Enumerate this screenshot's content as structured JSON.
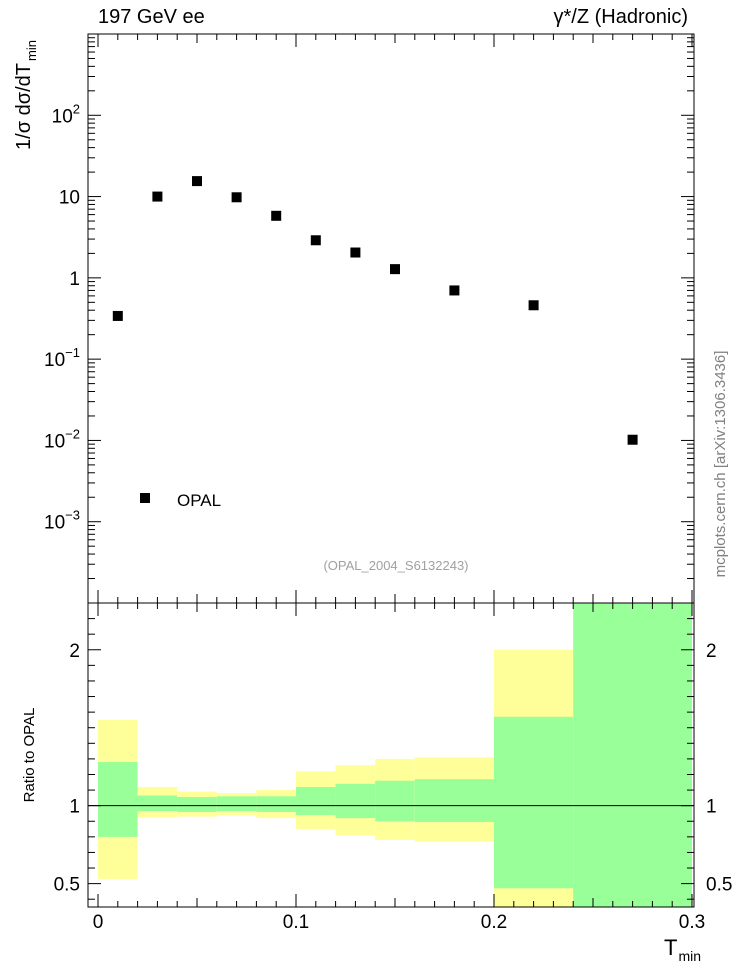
{
  "header": {
    "left_label": "197 GeV ee",
    "right_label": "γ*/Z (Hadronic)"
  },
  "watermark": "mcplots.cern.ch [arXiv:1306.3436]",
  "analysis_id": "(OPAL_2004_S6132243)",
  "colors": {
    "band_inner": "#99ff99",
    "band_outer": "#ffff99",
    "marker": "#000000",
    "watermark": "#808080"
  },
  "chart_data": [
    {
      "type": "scatter",
      "panel": "main",
      "ylabel": "1/σ dσ/dT min",
      "yscale": "log",
      "ylim": [
        0.0001,
        1000
      ],
      "xlim": [
        0,
        0.3
      ],
      "y_tick_labels": [
        "10^-3",
        "10^-2",
        "10^-1",
        "1",
        "10",
        "10^2"
      ],
      "legend_placement": "bottom-left",
      "series": [
        {
          "name": "OPAL",
          "x": [
            0.01,
            0.03,
            0.05,
            0.07,
            0.09,
            0.11,
            0.13,
            0.15,
            0.18,
            0.22,
            0.27
          ],
          "y": [
            0.34,
            10.0,
            15.5,
            9.8,
            5.8,
            2.9,
            2.05,
            1.28,
            0.7,
            0.46,
            0.0102
          ]
        }
      ]
    },
    {
      "type": "area",
      "panel": "ratio",
      "xlabel": "T min",
      "ylabel": "Ratio to OPAL",
      "xlim": [
        0,
        0.3
      ],
      "ylim": [
        0.35,
        2.3
      ],
      "x_tick_labels": [
        "0",
        "0.1",
        "0.2",
        "0.3"
      ],
      "y_tick_labels": [
        "0.5",
        "1",
        "2"
      ],
      "bins": [
        0,
        0.02,
        0.04,
        0.06,
        0.08,
        0.1,
        0.12,
        0.14,
        0.16,
        0.2,
        0.24,
        0.3
      ],
      "inner_lo": [
        0.8,
        0.965,
        0.96,
        0.965,
        0.96,
        0.94,
        0.92,
        0.9,
        0.895,
        0.47,
        0.35
      ],
      "inner_hi": [
        1.28,
        1.065,
        1.055,
        1.06,
        1.06,
        1.12,
        1.14,
        1.16,
        1.17,
        1.57,
        2.3
      ],
      "outer_lo": [
        0.53,
        0.925,
        0.93,
        0.94,
        0.92,
        0.85,
        0.81,
        0.78,
        0.77,
        0.35,
        0.35
      ],
      "outer_hi": [
        1.55,
        1.12,
        1.09,
        1.08,
        1.1,
        1.22,
        1.26,
        1.3,
        1.31,
        2.0,
        2.3
      ],
      "reference_line": 1
    }
  ]
}
